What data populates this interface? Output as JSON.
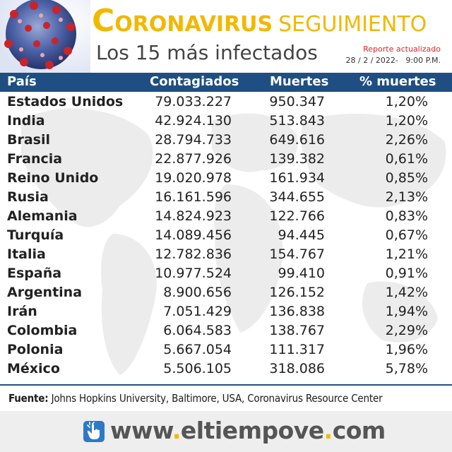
{
  "header": {
    "title_initial": "C",
    "title_rest": "ORONAVIRUS",
    "title_suffix": "SEGUIMIENTO",
    "subtitle": "Los 15 más infectados",
    "report_label": "Reporte actualizado",
    "report_date": "28 / 2 / 2022-",
    "report_time": "9:00 P.M."
  },
  "colors": {
    "title": "#f1b800",
    "header_bar": "#1f4f82",
    "report_label": "#e0262a",
    "link_icon": "#2d79c7"
  },
  "table": {
    "columns": [
      "País",
      "Contagiados",
      "Muertes",
      "% muertes"
    ],
    "rows": [
      {
        "country": "Estados Unidos",
        "cases": "79.033.227",
        "deaths": "950.347",
        "pct": "1,20%"
      },
      {
        "country": "India",
        "cases": "42.924.130",
        "deaths": "513.843",
        "pct": "1,20%"
      },
      {
        "country": "Brasil",
        "cases": "28.794.733",
        "deaths": "649.616",
        "pct": "2,26%"
      },
      {
        "country": "Francia",
        "cases": "22.877.926",
        "deaths": "139.382",
        "pct": "0,61%"
      },
      {
        "country": "Reino Unido",
        "cases": "19.020.978",
        "deaths": "161.934",
        "pct": "0,85%"
      },
      {
        "country": "Rusia",
        "cases": "16.161.596",
        "deaths": "344.655",
        "pct": "2,13%"
      },
      {
        "country": "Alemania",
        "cases": "14.824.923",
        "deaths": "122.766",
        "pct": "0,83%"
      },
      {
        "country": "Turquía",
        "cases": "14.089.456",
        "deaths": "94.445",
        "pct": "0,67%"
      },
      {
        "country": "Italia",
        "cases": "12.782.836",
        "deaths": "154.767",
        "pct": "1,21%"
      },
      {
        "country": "España",
        "cases": "10.977.524",
        "deaths": "99.410",
        "pct": "0,91%"
      },
      {
        "country": "Argentina",
        "cases": "8.900.656",
        "deaths": "126.152",
        "pct": "1,42%"
      },
      {
        "country": "Irán",
        "cases": "7.051.429",
        "deaths": "136.838",
        "pct": "1,94%"
      },
      {
        "country": "Colombia",
        "cases": "6.064.583",
        "deaths": "138.767",
        "pct": "2,29%"
      },
      {
        "country": "Polonia",
        "cases": "5.667.054",
        "deaths": "111.317",
        "pct": "1,96%"
      },
      {
        "country": "México",
        "cases": "5.506.105",
        "deaths": "318.086",
        "pct": "5,78%"
      }
    ]
  },
  "footer": {
    "source_label": "Fuente:",
    "source_text": "Johns Hopkins University, Baltimore, USA, Coronavirus Resource Center",
    "url_www": "www",
    "url_dot1": ".",
    "url_name": "eltiempove",
    "url_dot2": ".",
    "url_tld": "com",
    "link_icon": "pointer-hand-icon"
  }
}
